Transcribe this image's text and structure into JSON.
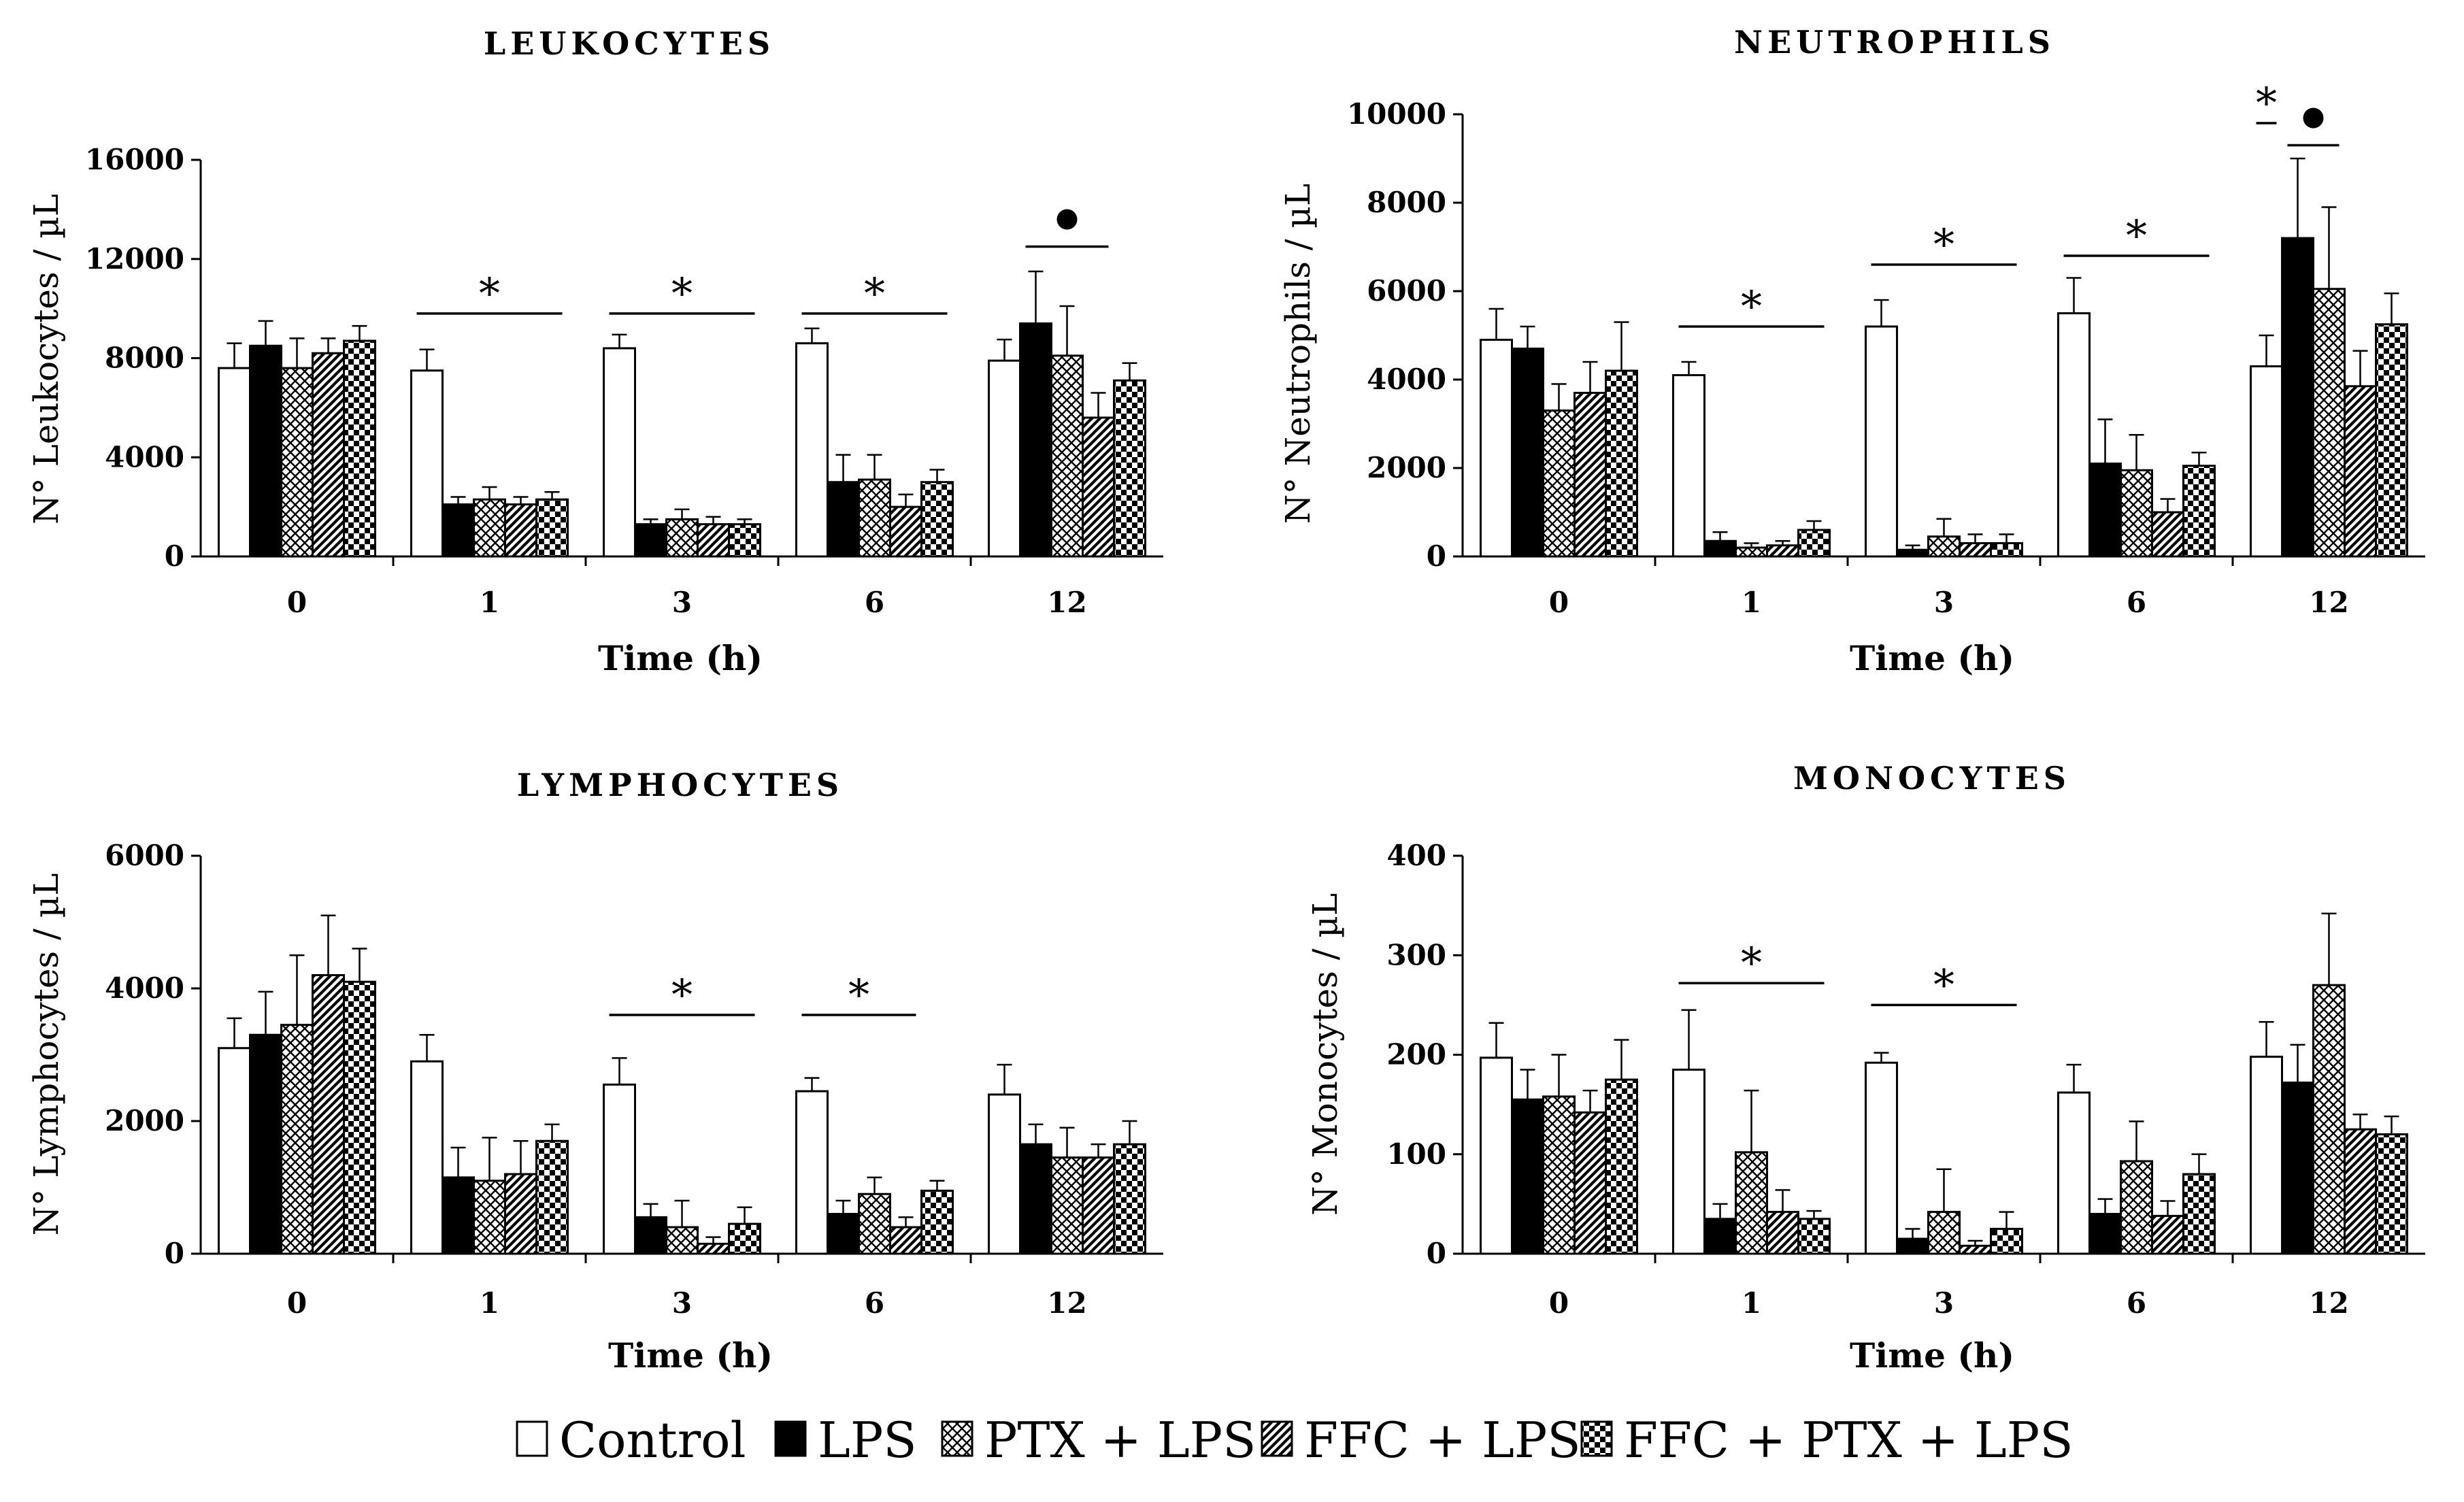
{
  "chart_data": [
    {
      "type": "bar",
      "title": "LEUKOCYTES",
      "xlabel": "Time (h)",
      "ylabel": "N° Leukocytes / µL",
      "ylim": [
        0,
        16000
      ],
      "yticks": [
        "0",
        "4000",
        "8000",
        "12000",
        "16000"
      ],
      "categories": [
        "0",
        "1",
        "3",
        "6",
        "12"
      ],
      "series": [
        {
          "name": "Control",
          "values": [
            7600,
            7500,
            8400,
            8600,
            7900
          ],
          "errors": [
            1000,
            850,
            550,
            600,
            850
          ]
        },
        {
          "name": "LPS",
          "values": [
            8500,
            2100,
            1300,
            3000,
            9400
          ],
          "errors": [
            1000,
            300,
            200,
            1100,
            2100
          ]
        },
        {
          "name": "PTX + LPS",
          "values": [
            7600,
            2300,
            1500,
            3100,
            8100
          ],
          "errors": [
            1200,
            500,
            400,
            1000,
            2000
          ]
        },
        {
          "name": "FFC + LPS",
          "values": [
            8200,
            2100,
            1300,
            2000,
            5600
          ],
          "errors": [
            600,
            300,
            300,
            500,
            1000
          ]
        },
        {
          "name": "FFC + PTX + LPS",
          "values": [
            8700,
            2300,
            1300,
            3000,
            7100
          ],
          "errors": [
            600,
            300,
            200,
            500,
            700
          ]
        }
      ],
      "annotations": [
        {
          "symbol": "*",
          "group": "1",
          "from_series": 0,
          "to_series": 4,
          "level": 9800
        },
        {
          "symbol": "*",
          "group": "3",
          "from_series": 0,
          "to_series": 4,
          "level": 9800
        },
        {
          "symbol": "*",
          "group": "6",
          "from_series": 0,
          "to_series": 4,
          "level": 9800
        },
        {
          "symbol": "●",
          "group": "12",
          "from_series": 1,
          "to_series": 3,
          "level": 12500
        }
      ]
    },
    {
      "type": "bar",
      "title": "NEUTROPHILS",
      "xlabel": "Time (h)",
      "ylabel": "N° Neutrophils / µL",
      "ylim": [
        0,
        10000
      ],
      "yticks": [
        "0",
        "2000",
        "4000",
        "6000",
        "8000",
        "10000"
      ],
      "categories": [
        "0",
        "1",
        "3",
        "6",
        "12"
      ],
      "series": [
        {
          "name": "Control",
          "values": [
            4900,
            4100,
            5200,
            5500,
            4300
          ],
          "errors": [
            700,
            300,
            600,
            800,
            700
          ]
        },
        {
          "name": "LPS",
          "values": [
            4700,
            350,
            150,
            2100,
            7200
          ],
          "errors": [
            500,
            200,
            100,
            1000,
            1800
          ]
        },
        {
          "name": "PTX + LPS",
          "values": [
            3300,
            200,
            450,
            1950,
            6050
          ],
          "errors": [
            600,
            100,
            400,
            800,
            1850
          ]
        },
        {
          "name": "FFC + LPS",
          "values": [
            3700,
            250,
            300,
            1000,
            3850
          ],
          "errors": [
            700,
            100,
            200,
            300,
            800
          ]
        },
        {
          "name": "FFC + PTX + LPS",
          "values": [
            4200,
            600,
            300,
            2050,
            5250
          ],
          "errors": [
            1100,
            200,
            200,
            300,
            700
          ]
        }
      ],
      "annotations": [
        {
          "symbol": "*",
          "group": "1",
          "from_series": 0,
          "to_series": 4,
          "level": 5200
        },
        {
          "symbol": "*",
          "group": "3",
          "from_series": 0,
          "to_series": 4,
          "level": 6600
        },
        {
          "symbol": "*",
          "group": "6",
          "from_series": 0,
          "to_series": 4,
          "level": 6800
        },
        {
          "symbol": "*",
          "group": "12",
          "from_series": 0,
          "to_series": 0,
          "level": 9800
        },
        {
          "symbol": "●",
          "group": "12",
          "from_series": 1,
          "to_series": 2,
          "level": 9300
        }
      ]
    },
    {
      "type": "bar",
      "title": "LYMPHOCYTES",
      "xlabel": "Time (h)",
      "ylabel": "N° Lymphocytes / µL",
      "ylim": [
        0,
        6000
      ],
      "yticks": [
        "0",
        "2000",
        "4000",
        "6000"
      ],
      "categories": [
        "0",
        "1",
        "3",
        "6",
        "12"
      ],
      "series": [
        {
          "name": "Control",
          "values": [
            3100,
            2900,
            2550,
            2450,
            2400
          ],
          "errors": [
            450,
            400,
            400,
            200,
            450
          ]
        },
        {
          "name": "LPS",
          "values": [
            3300,
            1150,
            550,
            600,
            1650
          ],
          "errors": [
            650,
            450,
            200,
            200,
            300
          ]
        },
        {
          "name": "PTX + LPS",
          "values": [
            3450,
            1100,
            400,
            900,
            1450
          ],
          "errors": [
            1050,
            650,
            400,
            250,
            450
          ]
        },
        {
          "name": "FFC + LPS",
          "values": [
            4200,
            1200,
            150,
            400,
            1450
          ],
          "errors": [
            900,
            500,
            100,
            150,
            200
          ]
        },
        {
          "name": "FFC + PTX + LPS",
          "values": [
            4100,
            1700,
            450,
            950,
            1650
          ],
          "errors": [
            500,
            250,
            250,
            150,
            350
          ]
        }
      ],
      "annotations": [
        {
          "symbol": "*",
          "group": "3",
          "from_series": 0,
          "to_series": 4,
          "level": 3600
        },
        {
          "symbol": "*",
          "group": "6",
          "from_series": 0,
          "to_series": 3,
          "level": 3600
        }
      ]
    },
    {
      "type": "bar",
      "title": "MONOCYTES",
      "xlabel": "Time (h)",
      "ylabel": "N° Monocytes / µL",
      "ylim": [
        0,
        400
      ],
      "yticks": [
        "0",
        "100",
        "200",
        "300",
        "400"
      ],
      "categories": [
        "0",
        "1",
        "3",
        "6",
        "12"
      ],
      "series": [
        {
          "name": "Control",
          "values": [
            197,
            185,
            192,
            162,
            198
          ],
          "errors": [
            35,
            60,
            10,
            28,
            35
          ]
        },
        {
          "name": "LPS",
          "values": [
            155,
            35,
            15,
            40,
            172
          ],
          "errors": [
            30,
            15,
            10,
            15,
            38
          ]
        },
        {
          "name": "PTX + LPS",
          "values": [
            158,
            102,
            42,
            93,
            270
          ],
          "errors": [
            42,
            62,
            43,
            40,
            72
          ]
        },
        {
          "name": "FFC + LPS",
          "values": [
            142,
            42,
            8,
            38,
            125
          ],
          "errors": [
            22,
            22,
            5,
            15,
            15
          ]
        },
        {
          "name": "FFC + PTX + LPS",
          "values": [
            175,
            35,
            25,
            80,
            120
          ],
          "errors": [
            40,
            8,
            17,
            20,
            18
          ]
        }
      ],
      "annotations": [
        {
          "symbol": "*",
          "group": "1",
          "from_series": 0,
          "to_series": 4,
          "level": 272
        },
        {
          "symbol": "*",
          "group": "3",
          "from_series": 0,
          "to_series": 4,
          "level": 250
        }
      ]
    }
  ],
  "legend": {
    "position": "bottom-center",
    "items": [
      {
        "label": "Control",
        "pattern": "white"
      },
      {
        "label": "LPS",
        "pattern": "black"
      },
      {
        "label": "PTX + LPS",
        "pattern": "crosshatch"
      },
      {
        "label": "FFC + LPS",
        "pattern": "diagonal"
      },
      {
        "label": "FFC + PTX + LPS",
        "pattern": "checker"
      }
    ]
  }
}
